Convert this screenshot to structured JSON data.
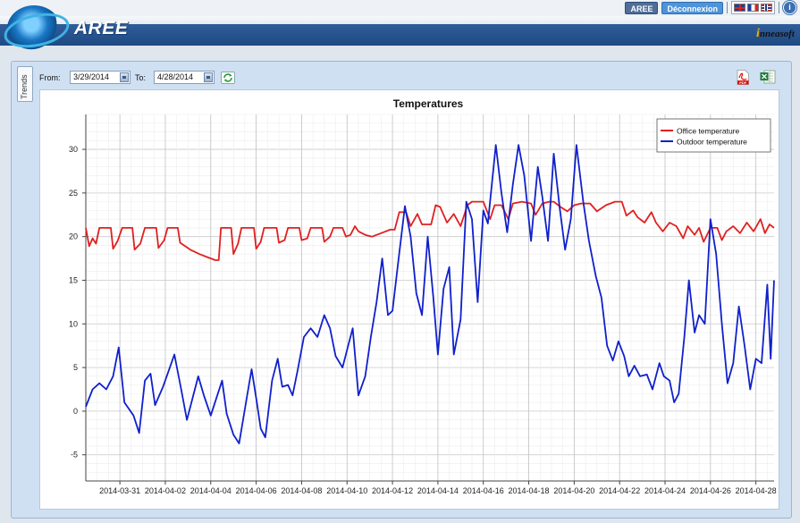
{
  "header": {
    "brand": "AREE",
    "vendor": "nneasoft",
    "vendor_initial": "i",
    "aree_button": "AREE",
    "logout_button": "Déconnexion",
    "info_glyph": "i"
  },
  "controls": {
    "tab_label": "Trends",
    "from_label": "From:",
    "from_value": "3/29/2014",
    "to_label": "To:",
    "to_value": "4/28/2014",
    "pdf_label": "PDF"
  },
  "chart_data": {
    "type": "line",
    "title": "Temperatures",
    "xlabel": "",
    "ylabel": "",
    "x_range_days": [
      0,
      30.3
    ],
    "ylim": [
      -8,
      34
    ],
    "y_ticks": [
      -5,
      0,
      5,
      10,
      15,
      20,
      25,
      30
    ],
    "x_tick_days": [
      1.5,
      3.5,
      5.5,
      7.5,
      9.5,
      11.5,
      13.5,
      15.5,
      17.5,
      19.5,
      21.5,
      23.5,
      25.5,
      27.5,
      29.5
    ],
    "x_tick_labels": [
      "2014-03-31",
      "2014-04-02",
      "2014-04-04",
      "2014-04-06",
      "2014-04-08",
      "2014-04-10",
      "2014-04-12",
      "2014-04-14",
      "2014-04-16",
      "2014-04-18",
      "2014-04-20",
      "2014-04-22",
      "2014-04-24",
      "2014-04-26",
      "2014-04-28"
    ],
    "grid": true,
    "legend_position": "top-right",
    "series": [
      {
        "name": "Office temperature",
        "color": "#e02020",
        "points": [
          [
            0,
            21
          ],
          [
            0.15,
            18.9
          ],
          [
            0.3,
            19.8
          ],
          [
            0.45,
            19.2
          ],
          [
            0.6,
            21
          ],
          [
            1.1,
            21
          ],
          [
            1.2,
            18.6
          ],
          [
            1.4,
            19.5
          ],
          [
            1.6,
            21
          ],
          [
            2.05,
            21
          ],
          [
            2.15,
            18.5
          ],
          [
            2.4,
            19.2
          ],
          [
            2.6,
            21
          ],
          [
            3.1,
            21
          ],
          [
            3.2,
            18.7
          ],
          [
            3.45,
            19.6
          ],
          [
            3.6,
            21
          ],
          [
            4.05,
            21
          ],
          [
            4.15,
            19.3
          ],
          [
            4.6,
            18.5
          ],
          [
            5,
            18
          ],
          [
            5.4,
            17.6
          ],
          [
            5.7,
            17.3
          ],
          [
            5.85,
            17.3
          ],
          [
            5.95,
            21
          ],
          [
            6.4,
            21
          ],
          [
            6.5,
            18
          ],
          [
            6.7,
            19.2
          ],
          [
            6.85,
            21
          ],
          [
            7.4,
            21
          ],
          [
            7.5,
            18.6
          ],
          [
            7.7,
            19.4
          ],
          [
            7.85,
            21
          ],
          [
            8.4,
            21
          ],
          [
            8.5,
            19.3
          ],
          [
            8.75,
            19.6
          ],
          [
            8.9,
            21
          ],
          [
            9.4,
            21
          ],
          [
            9.5,
            19.6
          ],
          [
            9.75,
            19.8
          ],
          [
            9.9,
            21
          ],
          [
            10.4,
            21
          ],
          [
            10.5,
            19.4
          ],
          [
            10.75,
            20
          ],
          [
            10.9,
            21
          ],
          [
            11.3,
            21
          ],
          [
            11.45,
            20
          ],
          [
            11.65,
            20.2
          ],
          [
            11.85,
            21.2
          ],
          [
            12,
            20.6
          ],
          [
            12.3,
            20.2
          ],
          [
            12.6,
            20
          ],
          [
            13,
            20.4
          ],
          [
            13.4,
            20.8
          ],
          [
            13.6,
            20.8
          ],
          [
            13.8,
            22.8
          ],
          [
            14.1,
            22.8
          ],
          [
            14.3,
            21.2
          ],
          [
            14.6,
            22.6
          ],
          [
            14.8,
            21.4
          ],
          [
            15.2,
            21.4
          ],
          [
            15.4,
            23.6
          ],
          [
            15.6,
            23.4
          ],
          [
            15.9,
            21.6
          ],
          [
            16.2,
            22.6
          ],
          [
            16.5,
            21.2
          ],
          [
            16.8,
            23.6
          ],
          [
            17,
            24
          ],
          [
            17.5,
            24
          ],
          [
            17.8,
            22
          ],
          [
            18,
            23.6
          ],
          [
            18.3,
            23.6
          ],
          [
            18.6,
            22
          ],
          [
            18.8,
            23.8
          ],
          [
            19.2,
            24
          ],
          [
            19.6,
            23.8
          ],
          [
            19.8,
            22.5
          ],
          [
            20.1,
            23.8
          ],
          [
            20.4,
            24
          ],
          [
            20.6,
            24
          ],
          [
            20.9,
            23.4
          ],
          [
            21.2,
            22.9
          ],
          [
            21.5,
            23.6
          ],
          [
            21.8,
            23.8
          ],
          [
            22.2,
            23.8
          ],
          [
            22.5,
            22.9
          ],
          [
            22.9,
            23.6
          ],
          [
            23.3,
            24
          ],
          [
            23.6,
            24
          ],
          [
            23.8,
            22.4
          ],
          [
            24.1,
            23
          ],
          [
            24.3,
            22.2
          ],
          [
            24.6,
            21.6
          ],
          [
            24.9,
            22.8
          ],
          [
            25.1,
            21.6
          ],
          [
            25.4,
            20.6
          ],
          [
            25.7,
            21.6
          ],
          [
            26,
            21.2
          ],
          [
            26.3,
            19.8
          ],
          [
            26.5,
            21.2
          ],
          [
            26.8,
            20.2
          ],
          [
            27,
            21
          ],
          [
            27.2,
            19.4
          ],
          [
            27.5,
            21
          ],
          [
            27.8,
            21
          ],
          [
            28,
            19.6
          ],
          [
            28.2,
            20.6
          ],
          [
            28.5,
            21.2
          ],
          [
            28.8,
            20.4
          ],
          [
            29.1,
            21.6
          ],
          [
            29.4,
            20.6
          ],
          [
            29.7,
            22
          ],
          [
            29.9,
            20.4
          ],
          [
            30.1,
            21.4
          ],
          [
            30.3,
            21
          ]
        ]
      },
      {
        "name": "Outdoor temperature",
        "color": "#1020cc",
        "points": [
          [
            0,
            0.5
          ],
          [
            0.3,
            2.5
          ],
          [
            0.6,
            3.2
          ],
          [
            0.9,
            2.5
          ],
          [
            1.2,
            4
          ],
          [
            1.45,
            7.3
          ],
          [
            1.7,
            1
          ],
          [
            2.1,
            -0.5
          ],
          [
            2.35,
            -2.5
          ],
          [
            2.6,
            3.5
          ],
          [
            2.85,
            4.3
          ],
          [
            3.05,
            0.7
          ],
          [
            3.4,
            2.8
          ],
          [
            3.7,
            5
          ],
          [
            3.9,
            6.5
          ],
          [
            4.2,
            2.5
          ],
          [
            4.45,
            -1
          ],
          [
            4.65,
            1
          ],
          [
            4.95,
            4
          ],
          [
            5.2,
            1.8
          ],
          [
            5.5,
            -0.5
          ],
          [
            5.75,
            1.5
          ],
          [
            6,
            3.5
          ],
          [
            6.2,
            -0.3
          ],
          [
            6.5,
            -2.7
          ],
          [
            6.75,
            -3.7
          ],
          [
            7.05,
            1
          ],
          [
            7.3,
            4.8
          ],
          [
            7.5,
            1.5
          ],
          [
            7.7,
            -2
          ],
          [
            7.9,
            -3
          ],
          [
            8.2,
            3.5
          ],
          [
            8.45,
            6
          ],
          [
            8.65,
            2.8
          ],
          [
            8.9,
            3
          ],
          [
            9.1,
            1.8
          ],
          [
            9.35,
            5
          ],
          [
            9.6,
            8.5
          ],
          [
            9.9,
            9.5
          ],
          [
            10.2,
            8.5
          ],
          [
            10.5,
            11
          ],
          [
            10.75,
            9.5
          ],
          [
            11,
            6.3
          ],
          [
            11.3,
            5
          ],
          [
            11.55,
            7.5
          ],
          [
            11.75,
            9.5
          ],
          [
            12,
            1.8
          ],
          [
            12.3,
            4
          ],
          [
            12.55,
            8.5
          ],
          [
            12.8,
            12.5
          ],
          [
            13.05,
            17.5
          ],
          [
            13.3,
            11
          ],
          [
            13.5,
            11.5
          ],
          [
            13.75,
            17
          ],
          [
            14.05,
            23.5
          ],
          [
            14.3,
            20
          ],
          [
            14.55,
            13.5
          ],
          [
            14.8,
            11
          ],
          [
            15.05,
            20
          ],
          [
            15.3,
            13
          ],
          [
            15.5,
            6.5
          ],
          [
            15.75,
            14
          ],
          [
            16,
            16.5
          ],
          [
            16.2,
            6.5
          ],
          [
            16.5,
            10.5
          ],
          [
            16.75,
            24
          ],
          [
            17,
            22
          ],
          [
            17.25,
            12.5
          ],
          [
            17.5,
            23
          ],
          [
            17.7,
            21.5
          ],
          [
            18.05,
            30.5
          ],
          [
            18.3,
            25
          ],
          [
            18.55,
            20.5
          ],
          [
            18.8,
            26
          ],
          [
            19.05,
            30.5
          ],
          [
            19.3,
            27
          ],
          [
            19.6,
            19.5
          ],
          [
            19.9,
            28
          ],
          [
            20.1,
            24.5
          ],
          [
            20.35,
            19.5
          ],
          [
            20.6,
            29.5
          ],
          [
            20.85,
            23.5
          ],
          [
            21.1,
            18.5
          ],
          [
            21.35,
            22
          ],
          [
            21.6,
            30.5
          ],
          [
            21.9,
            24
          ],
          [
            22.15,
            19.5
          ],
          [
            22.45,
            15.5
          ],
          [
            22.7,
            13
          ],
          [
            22.95,
            7.5
          ],
          [
            23.2,
            5.8
          ],
          [
            23.45,
            8
          ],
          [
            23.7,
            6.3
          ],
          [
            23.9,
            4
          ],
          [
            24.15,
            5.2
          ],
          [
            24.4,
            4
          ],
          [
            24.7,
            4.2
          ],
          [
            24.95,
            2.5
          ],
          [
            25.25,
            5.5
          ],
          [
            25.45,
            4
          ],
          [
            25.7,
            3.5
          ],
          [
            25.9,
            1
          ],
          [
            26.1,
            2
          ],
          [
            26.35,
            8.5
          ],
          [
            26.55,
            15
          ],
          [
            26.8,
            9
          ],
          [
            27,
            11
          ],
          [
            27.25,
            10
          ],
          [
            27.5,
            22
          ],
          [
            27.75,
            18
          ],
          [
            28,
            10
          ],
          [
            28.25,
            3.2
          ],
          [
            28.5,
            5.5
          ],
          [
            28.75,
            12
          ],
          [
            29,
            7.5
          ],
          [
            29.25,
            2.5
          ],
          [
            29.5,
            6
          ],
          [
            29.75,
            5.5
          ],
          [
            30,
            14.5
          ],
          [
            30.15,
            6
          ],
          [
            30.3,
            15
          ]
        ]
      }
    ]
  }
}
